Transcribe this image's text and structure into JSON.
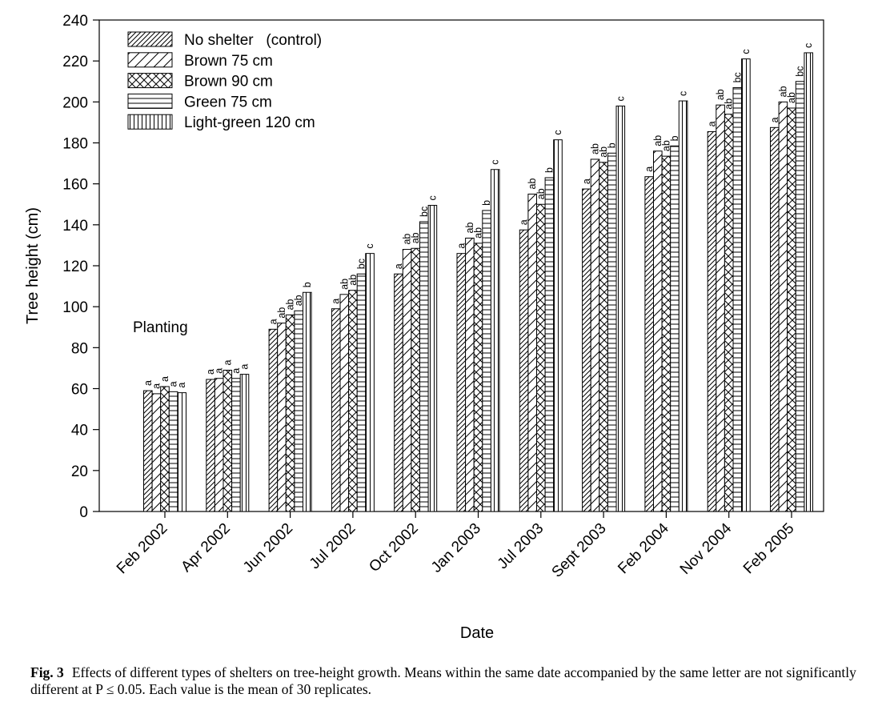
{
  "chart_data": {
    "type": "bar",
    "xlabel": "Date",
    "ylabel": "Tree height (cm)",
    "ylim": [
      0,
      240
    ],
    "yticks": [
      "0",
      "20",
      "40",
      "60",
      "80",
      "100",
      "120",
      "140",
      "160",
      "180",
      "200",
      "220",
      "240"
    ],
    "grid": false,
    "legend_position": "top-left",
    "annotation": "Planting",
    "categories": [
      "Feb 2002",
      "Apr 2002",
      "Jun 2002",
      "Jul 2002",
      "Oct 2002",
      "Jan 2003",
      "Jul 2003",
      "Sept 2003",
      "Feb 2004",
      "Nov 2004",
      "Feb 2005"
    ],
    "series": [
      {
        "name": "No shelter   (control)",
        "pattern": "diagonal-dense",
        "values": [
          59,
          64.5,
          89,
          99,
          116,
          126,
          137.5,
          157.5,
          163.5,
          185.5,
          187.5
        ],
        "letters": [
          "a",
          "a",
          "a",
          "a",
          "a",
          "a",
          "a",
          "a",
          "a",
          "a",
          "a"
        ]
      },
      {
        "name": "Brown 75 cm",
        "pattern": "diagonal-sparse",
        "values": [
          57.5,
          65,
          92,
          106,
          128,
          133.5,
          155,
          172,
          176,
          198.5,
          200
        ],
        "letters": [
          "a",
          "a",
          "ab",
          "ab",
          "ab",
          "ab",
          "ab",
          "ab",
          "ab",
          "ab",
          "ab"
        ]
      },
      {
        "name": "Brown 90 cm",
        "pattern": "crosshatch",
        "values": [
          61,
          69,
          96,
          108,
          128.5,
          131,
          150,
          170.5,
          173.5,
          194,
          197
        ],
        "letters": [
          "a",
          "a",
          "ab",
          "ab",
          "ab",
          "ab",
          "ab",
          "ab",
          "ab",
          "ab",
          "ab"
        ]
      },
      {
        "name": "Green 75 cm",
        "pattern": "horizontal",
        "values": [
          58.5,
          65,
          98,
          116,
          141.5,
          147,
          163,
          175,
          178.5,
          207,
          210
        ],
        "letters": [
          "a",
          "a",
          "ab",
          "bc",
          "bc",
          "b",
          "b",
          "b",
          "b",
          "bc",
          "bc"
        ]
      },
      {
        "name": "Light-green 120 cm",
        "pattern": "vertical",
        "values": [
          58,
          67,
          107,
          126,
          149.5,
          167,
          181.5,
          198,
          200.5,
          221,
          224
        ],
        "letters": [
          "a",
          "a",
          "b",
          "c",
          "c",
          "c",
          "c",
          "c",
          "c",
          "c",
          "c"
        ]
      }
    ]
  },
  "caption": {
    "label": "Fig. 3",
    "text": "Effects of different types of shelters on tree-height growth. Means within the same date accompanied by the same letter are not significantly different at P ≤ 0.05. Each value is the mean of 30 replicates."
  }
}
